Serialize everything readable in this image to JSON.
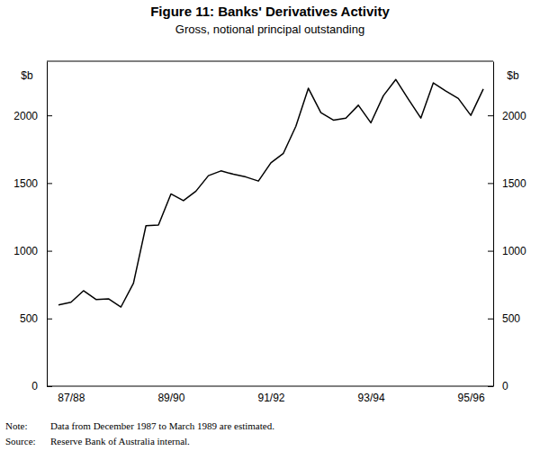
{
  "chart_data": {
    "type": "line",
    "title": "Figure 11: Banks' Derivatives Activity",
    "subtitle": "Gross, notional principal outstanding",
    "y_label": "$b",
    "categories": [
      null,
      "87/88",
      null,
      null,
      null,
      null,
      null,
      null,
      null,
      "89/90",
      null,
      null,
      null,
      null,
      null,
      null,
      null,
      "91/92",
      null,
      null,
      null,
      null,
      null,
      null,
      null,
      "93/94",
      null,
      null,
      null,
      null,
      null,
      null,
      null,
      "95/96",
      null
    ],
    "values": [
      600,
      620,
      705,
      640,
      645,
      585,
      760,
      1185,
      1190,
      1420,
      1370,
      1440,
      1555,
      1590,
      1565,
      1545,
      1515,
      1650,
      1720,
      1920,
      2200,
      2020,
      1965,
      1980,
      2075,
      1945,
      2145,
      2265,
      2120,
      1980,
      2240,
      2180,
      2125,
      2000,
      2195
    ],
    "color": "#000000",
    "ylim": [
      0,
      2400
    ],
    "yticks": [
      0,
      500,
      1000,
      1500,
      2000
    ],
    "grid": false,
    "note_label": "Note:",
    "note": "Data from December 1987 to March 1989 are estimated.",
    "source_label": "Source:",
    "source": "Reserve Bank of Australia internal."
  }
}
